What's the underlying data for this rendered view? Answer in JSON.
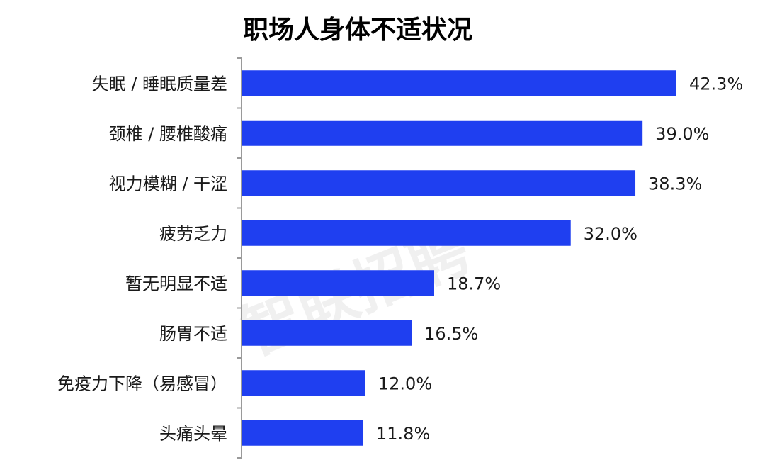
{
  "chart_data": {
    "type": "bar",
    "orientation": "horizontal",
    "title": "职场人身体不适状况",
    "categories": [
      "失眠 / 睡眠质量差",
      "颈椎 / 腰椎酸痛",
      "视力模糊 / 干涩",
      "疲劳乏力",
      "暂无明显不适",
      "肠胃不适",
      "免疫力下降（易感冒）",
      "头痛头晕"
    ],
    "values": [
      42.3,
      39.0,
      38.3,
      32.0,
      18.7,
      16.5,
      12.0,
      11.8
    ],
    "value_labels": [
      "42.3%",
      "39.0%",
      "38.3%",
      "32.0%",
      "18.7%",
      "16.5%",
      "12.0%",
      "11.8%"
    ],
    "unit": "%",
    "xlim": [
      0,
      42.3
    ],
    "grid": false,
    "legend": "none",
    "bar_color": "#1f3ff0",
    "axis_color": "#9a9a9a",
    "watermark": "智联招聘"
  }
}
